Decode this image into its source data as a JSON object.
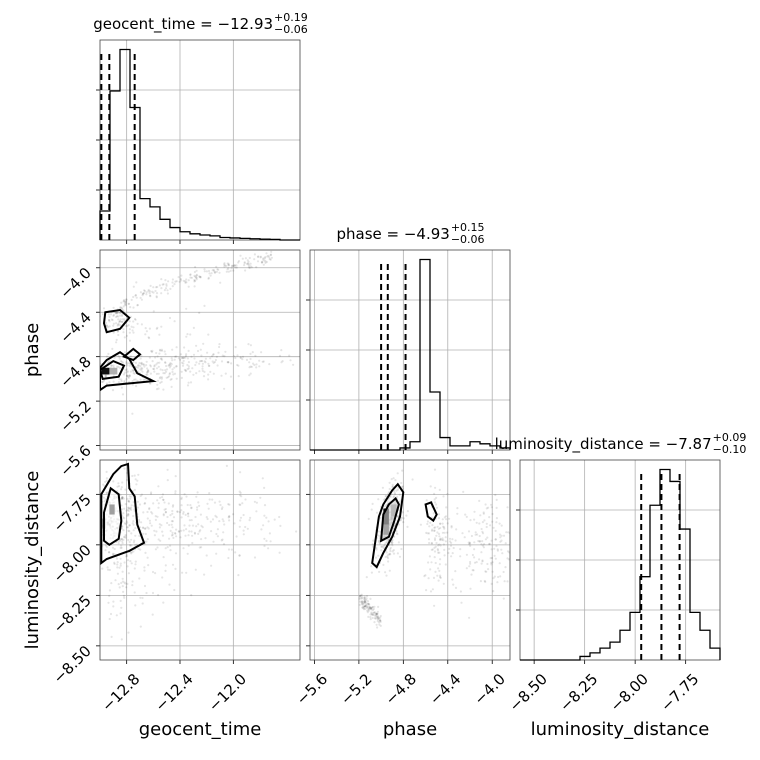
{
  "chart_data": {
    "type": "corner",
    "parameters": [
      "geocent_time",
      "phase",
      "luminosity_distance"
    ],
    "axis_labels": {
      "x": [
        "geocent_time",
        "phase",
        "luminosity_distance"
      ],
      "y": [
        "phase",
        "luminosity_distance"
      ]
    },
    "titles": [
      {
        "param": "geocent_time",
        "prefix": "geocent_time = ",
        "median": "−12.93",
        "plus": "+0.19",
        "minus": "−0.06"
      },
      {
        "param": "phase",
        "prefix": "phase = ",
        "median": "−4.93",
        "plus": "+0.15",
        "minus": "−0.06"
      },
      {
        "param": "luminosity_distance",
        "prefix": "luminosity_distance = ",
        "median": "−7.87",
        "plus": "+0.09",
        "minus": "−0.10"
      }
    ],
    "ranges": {
      "geocent_time": [
        -13.0,
        -11.5
      ],
      "phase": [
        -5.64,
        -3.84
      ],
      "luminosity_distance": [
        -8.57,
        -7.58
      ]
    },
    "ticks": {
      "geocent_time": [
        -12.8,
        -12.4,
        -12.0
      ],
      "phase_x": [
        -5.6,
        -5.2,
        -4.8,
        -4.4,
        -4.0
      ],
      "phase_y": [
        -4.0,
        -4.4,
        -4.8,
        -5.2,
        -5.6
      ],
      "luminosity_distance_x": [
        -8.5,
        -8.25,
        -8.0,
        -7.75
      ],
      "luminosity_distance_y": [
        -7.75,
        -8.0,
        -8.25,
        -8.5
      ]
    },
    "tick_labels": {
      "geocent_time": [
        "−12.8",
        "−12.4",
        "−12.0"
      ],
      "phase_x": [
        "−5.6",
        "−5.2",
        "−4.8",
        "−4.4",
        "−4.0"
      ],
      "phase_y": [
        "−4.0",
        "−4.4",
        "−4.8",
        "−5.2",
        "−5.6"
      ],
      "luminosity_distance_x": [
        "−8.50",
        "−8.25",
        "−8.00",
        "−7.75"
      ],
      "luminosity_distance_y": [
        "−7.75",
        "−8.00",
        "−8.25",
        "−8.50"
      ]
    },
    "histograms": [
      {
        "param": "geocent_time",
        "bin_width": 0.075,
        "counts": [
          7,
          36,
          46,
          32,
          10,
          8,
          5,
          3,
          2,
          1.5,
          1.2,
          1,
          0.6,
          0.5,
          0.4,
          0.3,
          0.2,
          0.15,
          0,
          0
        ],
        "quantiles": [
          -12.99,
          -12.93,
          -12.74
        ]
      },
      {
        "param": "phase",
        "bin_width": 0.09,
        "counts": [
          0,
          0,
          0,
          0,
          0,
          0,
          0,
          0,
          0,
          0.5,
          2,
          46,
          14,
          3,
          1,
          1,
          2,
          1.5,
          1,
          0.5,
          0.5,
          0.5
        ],
        "quantiles": [
          -5.0,
          -4.94,
          -4.78
        ]
      },
      {
        "param": "luminosity_distance",
        "bin_width": 0.0495,
        "counts": [
          0,
          0,
          0,
          0,
          0,
          0,
          0.3,
          0.6,
          1,
          1.5,
          2.5,
          4,
          7,
          13,
          16,
          15,
          11,
          4,
          2.5,
          1
        ],
        "quantiles": [
          -7.97,
          -7.87,
          -7.78
        ]
      }
    ],
    "grid": true
  }
}
